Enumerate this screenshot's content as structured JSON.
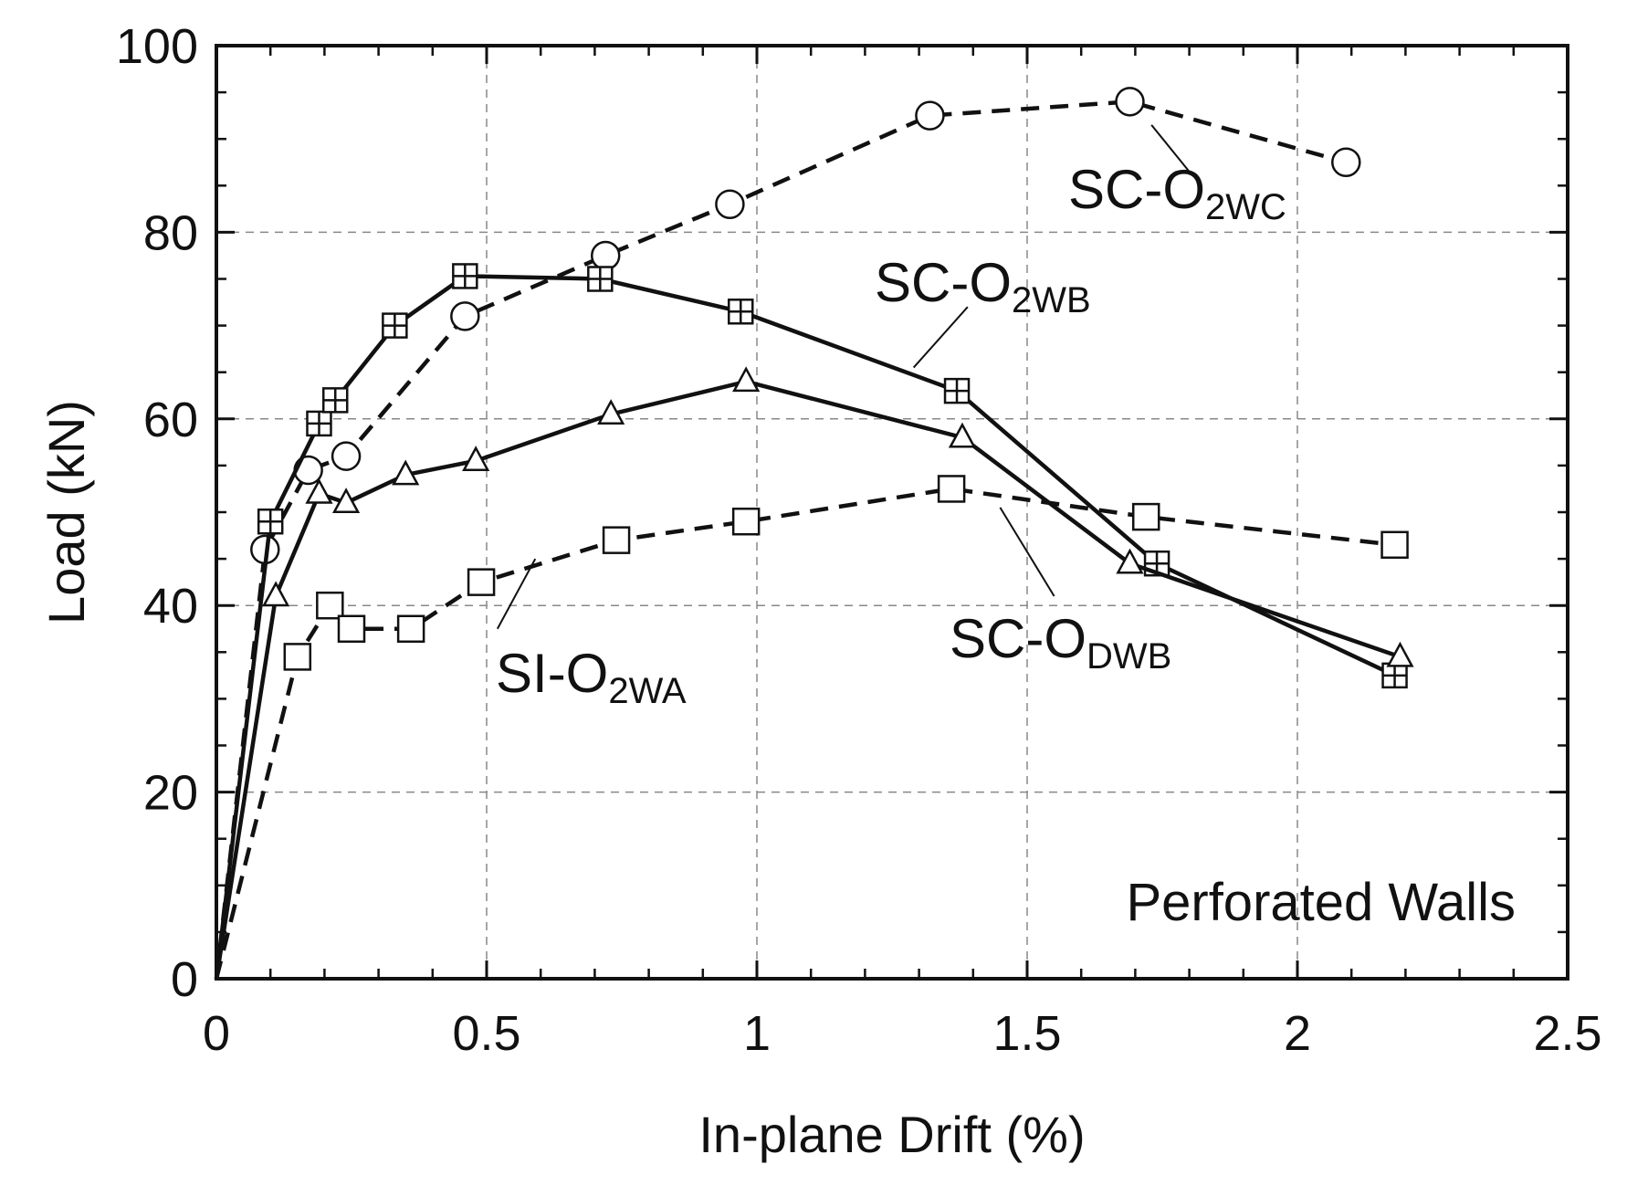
{
  "chart_data": {
    "type": "line",
    "title": "",
    "xlabel": "In-plane Drift (%)",
    "ylabel": "Load  (kN)",
    "xlim": [
      0,
      2.5
    ],
    "ylim": [
      0,
      100
    ],
    "xticks": [
      "0",
      "0.5",
      "1",
      "1.5",
      "2",
      "2.5"
    ],
    "yticks": [
      "0",
      "20",
      "40",
      "60",
      "80",
      "100"
    ],
    "grid": true,
    "annotation": "Perforated Walls",
    "series": [
      {
        "name": "SC-O2WC",
        "label_main": "SC-O",
        "label_sub": "2WC",
        "line_style": "dashed",
        "marker": "circle",
        "x": [
          0,
          0.09,
          0.17,
          0.24,
          0.46,
          0.72,
          0.95,
          1.32,
          1.69,
          2.09
        ],
        "y": [
          0,
          46,
          54.5,
          56,
          71,
          77.5,
          83,
          92.5,
          94,
          87.5
        ]
      },
      {
        "name": "SC-O2WB",
        "label_main": "SC-O",
        "label_sub": "2WB",
        "line_style": "solid",
        "marker": "square-plus",
        "x": [
          0,
          0.1,
          0.19,
          0.22,
          0.33,
          0.46,
          0.71,
          0.97,
          1.37,
          1.74,
          2.18
        ],
        "y": [
          0,
          49,
          59.5,
          62,
          70,
          75.3,
          75,
          71.5,
          63,
          44.5,
          32.5
        ]
      },
      {
        "name": "SC-ODWB",
        "label_main": "SC-O",
        "label_sub": "DWB",
        "line_style": "solid",
        "marker": "triangle",
        "x": [
          0,
          0.11,
          0.19,
          0.24,
          0.35,
          0.48,
          0.73,
          0.98,
          1.38,
          1.69,
          2.19
        ],
        "y": [
          0,
          41,
          52,
          51,
          54,
          55.5,
          60.5,
          64,
          58,
          44.5,
          34.5
        ]
      },
      {
        "name": "SI-O2WA",
        "label_main": "SI-O",
        "label_sub": "2WA",
        "line_style": "dashed",
        "marker": "square",
        "x": [
          0,
          0.15,
          0.21,
          0.25,
          0.36,
          0.49,
          0.74,
          0.98,
          1.36,
          1.72,
          2.18
        ],
        "y": [
          0,
          34.5,
          40,
          37.5,
          37.5,
          42.5,
          47,
          49,
          52.5,
          49.5,
          46.5
        ]
      }
    ]
  }
}
